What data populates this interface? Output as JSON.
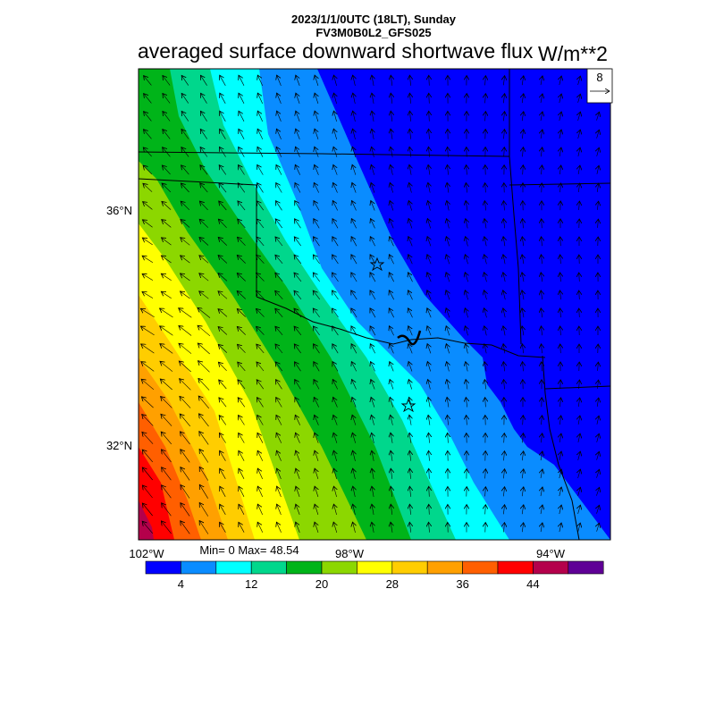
{
  "header": {
    "date_line": "2023/1/1/0UTC (18LT), Sunday",
    "model_line": "FV3M0B0L2_GFS025",
    "title": "averaged surface downward shortwave flux",
    "units": "W/m**2"
  },
  "map": {
    "lat_labels": [
      "36°N",
      "32°N"
    ],
    "lon_labels": [
      "102°W",
      "98°W",
      "94°W"
    ],
    "vector_reference_value": "8",
    "stats": "Min= 0 Max= 48.54",
    "min": 0,
    "max": 48.54
  },
  "colorbar": {
    "colors": [
      "#0000ff",
      "#0a8cff",
      "#00ffff",
      "#00d78c",
      "#00b419",
      "#8cd700",
      "#ffff00",
      "#ffcd00",
      "#ffa000",
      "#ff5f00",
      "#ff0000",
      "#b4004b",
      "#5f0096"
    ],
    "labels": [
      "4",
      "12",
      "20",
      "28",
      "36",
      "44"
    ]
  }
}
